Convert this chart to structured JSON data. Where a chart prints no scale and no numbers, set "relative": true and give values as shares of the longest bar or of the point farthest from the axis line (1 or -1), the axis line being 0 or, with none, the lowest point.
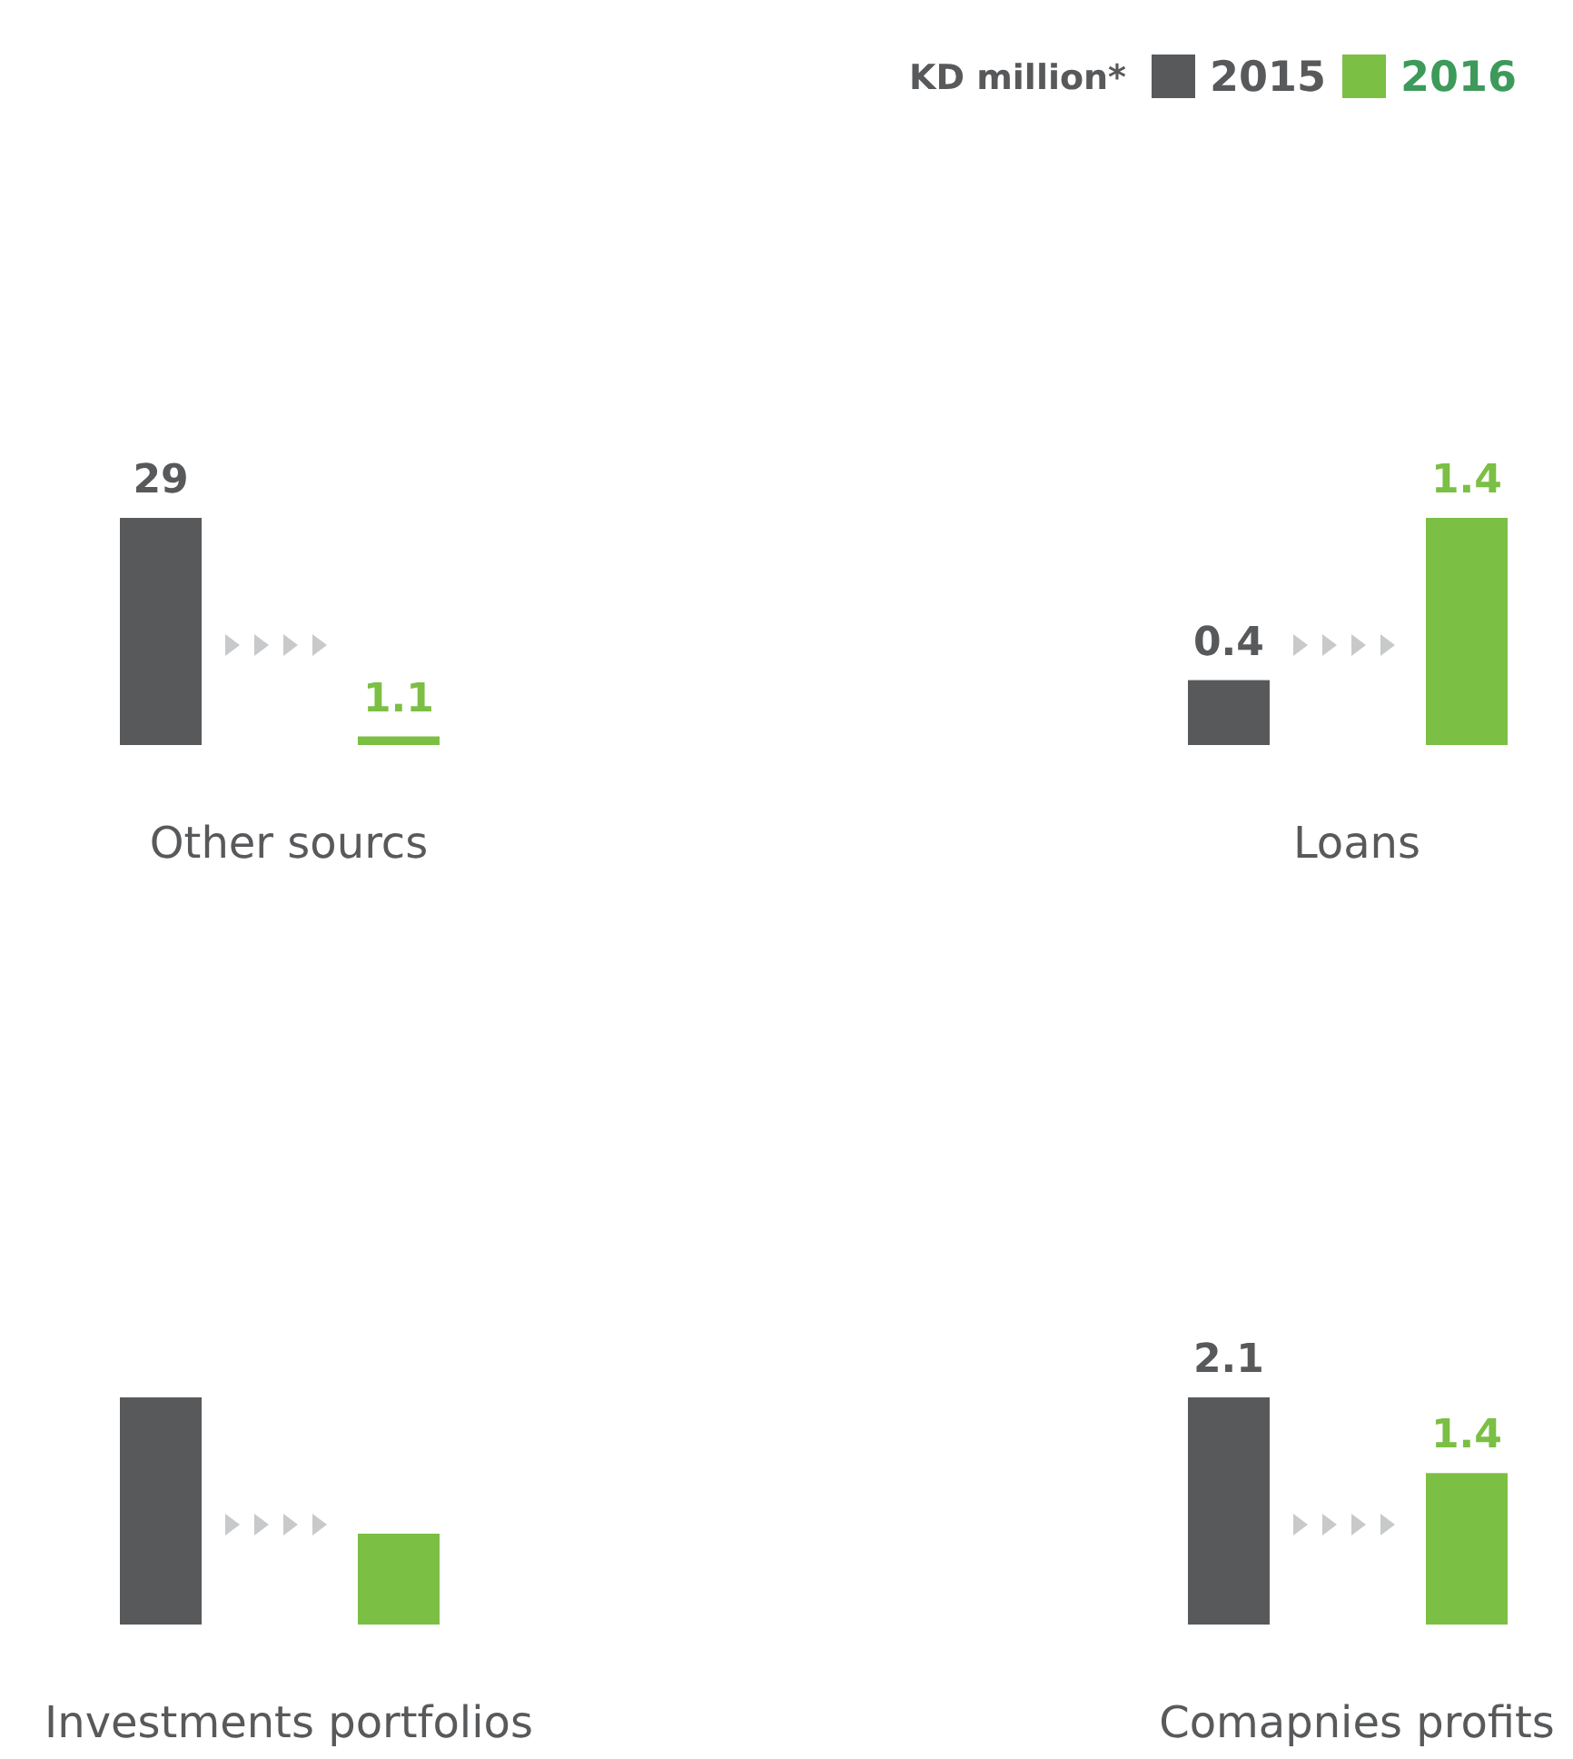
{
  "chart_data": [
    {
      "type": "other",
      "legend": "top right",
      "legend_title": "KD million*",
      "series": [
        {
          "name": "2015",
          "color": "#58595b"
        },
        {
          "name": "2016",
          "color": "#7bbf44"
        }
      ]
    },
    {
      "type": "bar",
      "xlabel": "Other sourcs",
      "categories": [
        null,
        null
      ],
      "data_labels": true,
      "values": [
        29,
        1.1
      ],
      "colors": [
        "#58595b",
        "#7bbf44"
      ]
    },
    {
      "type": "bar",
      "xlabel": "Loans",
      "categories": [
        null,
        null
      ],
      "data_labels": true,
      "values": [
        0.4,
        1.4
      ],
      "colors": [
        "#58595b",
        "#7bbf44"
      ]
    },
    {
      "type": "bar",
      "xlabel": "Investments portfolios",
      "categories": [
        null,
        null
      ],
      "relative": true,
      "values": [
        1,
        0.4
      ],
      "colors": [
        "#58595b",
        "#7bbf44"
      ]
    },
    {
      "type": "bar",
      "xlabel": "Comapnies profits",
      "categories": [
        null,
        null
      ],
      "data_labels": true,
      "values": [
        2.1,
        1.4
      ],
      "colors": [
        "#58595b",
        "#7bbf44"
      ]
    }
  ]
}
